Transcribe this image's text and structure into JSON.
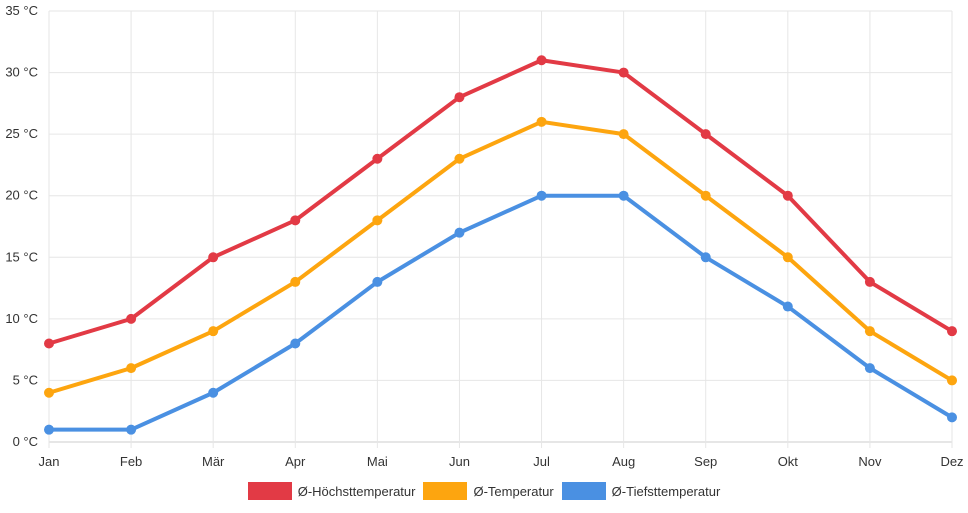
{
  "chart_data": {
    "type": "line",
    "categories": [
      "Jan",
      "Feb",
      "Mär",
      "Apr",
      "Mai",
      "Jun",
      "Jul",
      "Aug",
      "Sep",
      "Okt",
      "Nov",
      "Dez"
    ],
    "series": [
      {
        "name": "Ø-Höchsttemperatur",
        "color": "#e23a45",
        "values": [
          8,
          10,
          15,
          18,
          23,
          28,
          31,
          30,
          25,
          20,
          13,
          9
        ]
      },
      {
        "name": "Ø-Temperatur",
        "color": "#fda50f",
        "values": [
          4,
          6,
          9,
          13,
          18,
          23,
          26,
          25,
          20,
          15,
          9,
          5
        ]
      },
      {
        "name": "Ø-Tiefsttemperatur",
        "color": "#4a90e2",
        "values": [
          1,
          1,
          4,
          8,
          13,
          17,
          20,
          20,
          15,
          11,
          6,
          2
        ]
      }
    ],
    "y_ticks": [
      "0 °C",
      "5 °C",
      "10 °C",
      "15 °C",
      "20 °C",
      "25 °C",
      "30 °C",
      "35 °C"
    ],
    "ylim": [
      0,
      35
    ],
    "grid": true,
    "legend_position": "bottom"
  }
}
